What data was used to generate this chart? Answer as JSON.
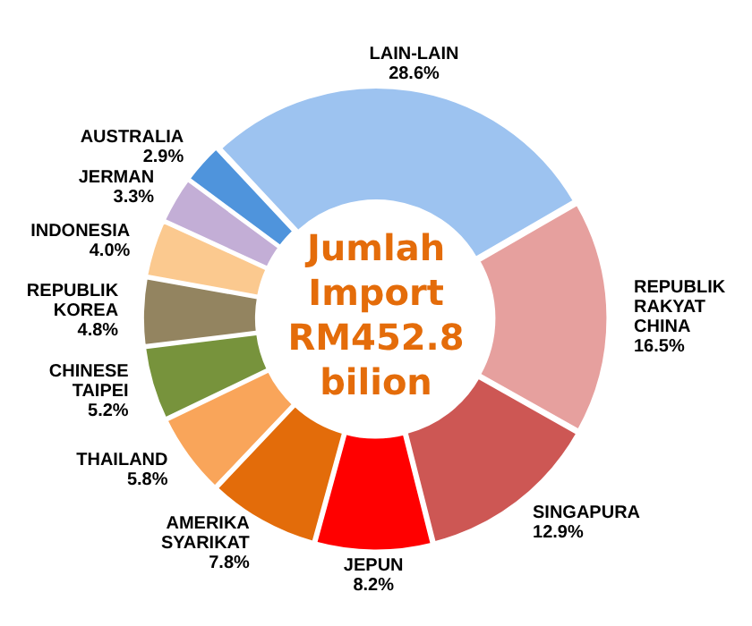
{
  "chart_data": {
    "type": "donut",
    "title": "Jumlah Import RM452.8 bilion",
    "categories": [
      "LAIN-LAIN",
      "REPUBLIK RAKYAT CHINA",
      "SINGAPURA",
      "JEPUN",
      "AMERIKA SYARIKAT",
      "THAILAND",
      "CHINESE TAIPEI",
      "REPUBLIK KOREA",
      "INDONESIA",
      "JERMAN",
      "AUSTRALIA"
    ],
    "values": [
      28.6,
      16.5,
      12.9,
      8.2,
      7.8,
      5.8,
      5.2,
      4.8,
      4.0,
      3.3,
      2.9
    ],
    "value_labels": [
      "28.6%",
      "16.5%",
      "12.9%",
      "8.2%",
      "7.8%",
      "5.8%",
      "5.2%",
      "4.8%",
      "4.0%",
      "3.3%",
      "2.9%"
    ],
    "colors": [
      "#9dc3f0",
      "#e6a09e",
      "#cd5754",
      "#ff0000",
      "#e36c0a",
      "#f9a55a",
      "#77933c",
      "#938460",
      "#fbc98f",
      "#c3aed6",
      "#4f94dc"
    ],
    "legend": false
  }
}
